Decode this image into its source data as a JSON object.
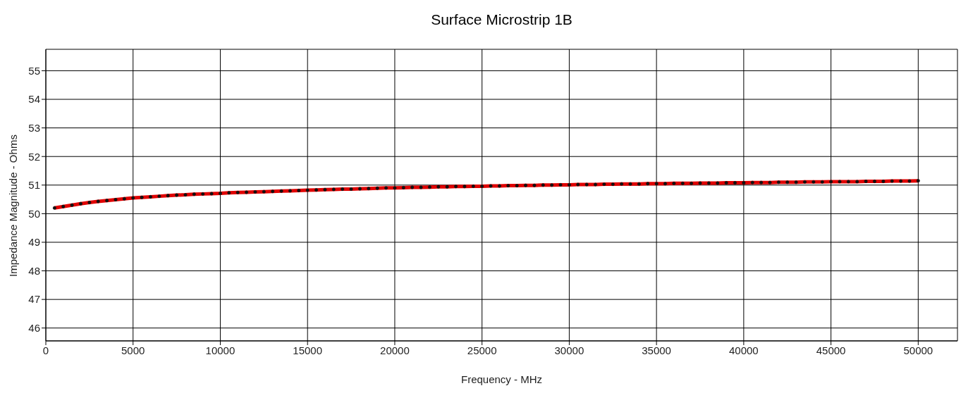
{
  "chart_data": {
    "type": "line",
    "title": "Surface Microstrip 1B",
    "xlabel": "Frequency - MHz",
    "ylabel": "Impedance Magnitude - Ohms",
    "x": [
      500,
      1000,
      1500,
      2000,
      2500,
      3000,
      3500,
      4000,
      4500,
      5000,
      5500,
      6000,
      6500,
      7000,
      7500,
      8000,
      8500,
      9000,
      9500,
      10000,
      10500,
      11000,
      11500,
      12000,
      12500,
      13000,
      13500,
      14000,
      14500,
      15000,
      15500,
      16000,
      16500,
      17000,
      17500,
      18000,
      18500,
      19000,
      19500,
      20000,
      20500,
      21000,
      21500,
      22000,
      22500,
      23000,
      23500,
      24000,
      24500,
      25000,
      25500,
      26000,
      26500,
      27000,
      27500,
      28000,
      28500,
      29000,
      29500,
      30000,
      30500,
      31000,
      31500,
      32000,
      32500,
      33000,
      33500,
      34000,
      34500,
      35000,
      35500,
      36000,
      36500,
      37000,
      37500,
      38000,
      38500,
      39000,
      39500,
      40000,
      40500,
      41000,
      41500,
      42000,
      42500,
      43000,
      43500,
      44000,
      44500,
      45000,
      45500,
      46000,
      46500,
      47000,
      47500,
      48000,
      48500,
      49000,
      49500,
      50000
    ],
    "series": [
      {
        "color": "#e00000",
        "values": [
          50.2,
          50.25,
          50.3,
          50.35,
          50.39,
          50.43,
          50.46,
          50.49,
          50.52,
          50.55,
          50.57,
          50.59,
          50.61,
          50.63,
          50.65,
          50.66,
          50.68,
          50.69,
          50.7,
          50.71,
          50.73,
          50.74,
          50.75,
          50.76,
          50.77,
          50.78,
          50.79,
          50.8,
          50.81,
          50.82,
          50.83,
          50.84,
          50.85,
          50.86,
          50.86,
          50.87,
          50.88,
          50.89,
          50.9,
          50.9,
          50.91,
          50.92,
          50.92,
          50.93,
          50.94,
          50.94,
          50.95,
          50.95,
          50.96,
          50.96,
          50.97,
          50.97,
          50.98,
          50.98,
          50.99,
          50.99,
          51.0,
          51.0,
          51.01,
          51.01,
          51.02,
          51.02,
          51.02,
          51.03,
          51.03,
          51.04,
          51.04,
          51.04,
          51.05,
          51.05,
          51.05,
          51.06,
          51.06,
          51.06,
          51.07,
          51.07,
          51.07,
          51.08,
          51.08,
          51.08,
          51.09,
          51.09,
          51.09,
          51.1,
          51.1,
          51.1,
          51.11,
          51.11,
          51.11,
          51.12,
          51.12,
          51.12,
          51.12,
          51.13,
          51.13,
          51.13,
          51.14,
          51.14,
          51.14,
          51.15
        ]
      }
    ],
    "xlim": [
      0,
      52250
    ],
    "xticks": [
      0,
      5000,
      10000,
      15000,
      20000,
      25000,
      30000,
      35000,
      40000,
      45000,
      50000
    ],
    "ylim": [
      45.55,
      55.75
    ],
    "yticks": [
      46,
      47,
      48,
      49,
      50,
      51,
      52,
      53,
      54,
      55
    ],
    "grid": true,
    "marker": "circle",
    "line_style": "solid"
  }
}
